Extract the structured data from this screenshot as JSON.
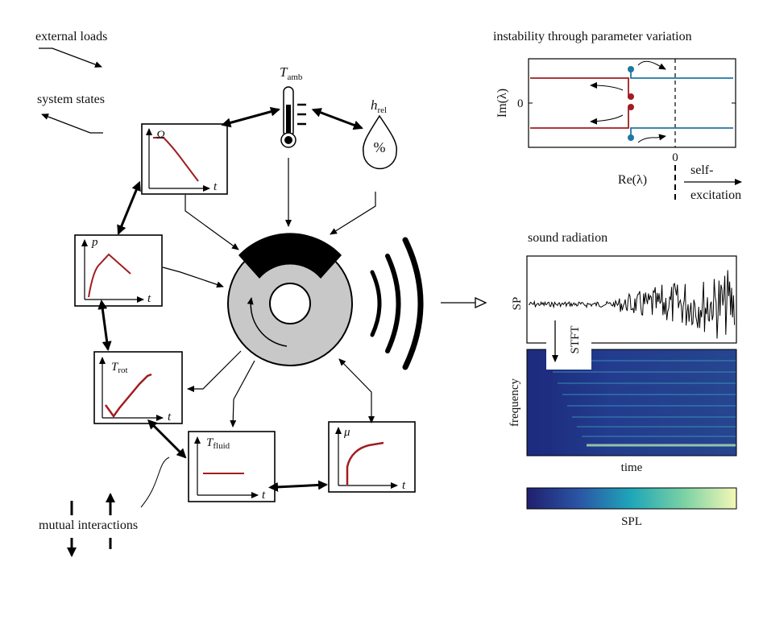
{
  "legend": {
    "external_loads": "external loads",
    "system_states": "system states",
    "mutual_interactions": "mutual interactions"
  },
  "sensors": {
    "t_amb": {
      "symbol": "T",
      "subscript": "amb"
    },
    "h_rel": {
      "symbol": "h",
      "subscript": "rel",
      "glyph": "%"
    }
  },
  "state_plots": [
    {
      "symbol": "Ω",
      "subscript": "",
      "axis": "t"
    },
    {
      "symbol": "p",
      "subscript": "",
      "axis": "t"
    },
    {
      "symbol": "T",
      "subscript": "rot",
      "axis": "t"
    },
    {
      "symbol": "T",
      "subscript": "fluid",
      "axis": "t"
    },
    {
      "symbol": "μ",
      "subscript": "",
      "axis": "t"
    }
  ],
  "instability": {
    "title": "instability through parameter variation",
    "ylabel": "Im(λ)",
    "xlabel": "Re(λ)",
    "y_tick": "0",
    "x_tick": "0",
    "self_excitation_1": "self-",
    "self_excitation_2": "excitation"
  },
  "sound": {
    "title": "sound radiation",
    "sp_label": "SP",
    "stft_label": "STFT",
    "freq_label": "frequency",
    "time_label": "time",
    "colorbar_label": "SPL"
  },
  "colors": {
    "red": "#a11d21",
    "blue": "#1f77a0",
    "disc_gray": "#c8c8c8",
    "black": "#000000"
  }
}
